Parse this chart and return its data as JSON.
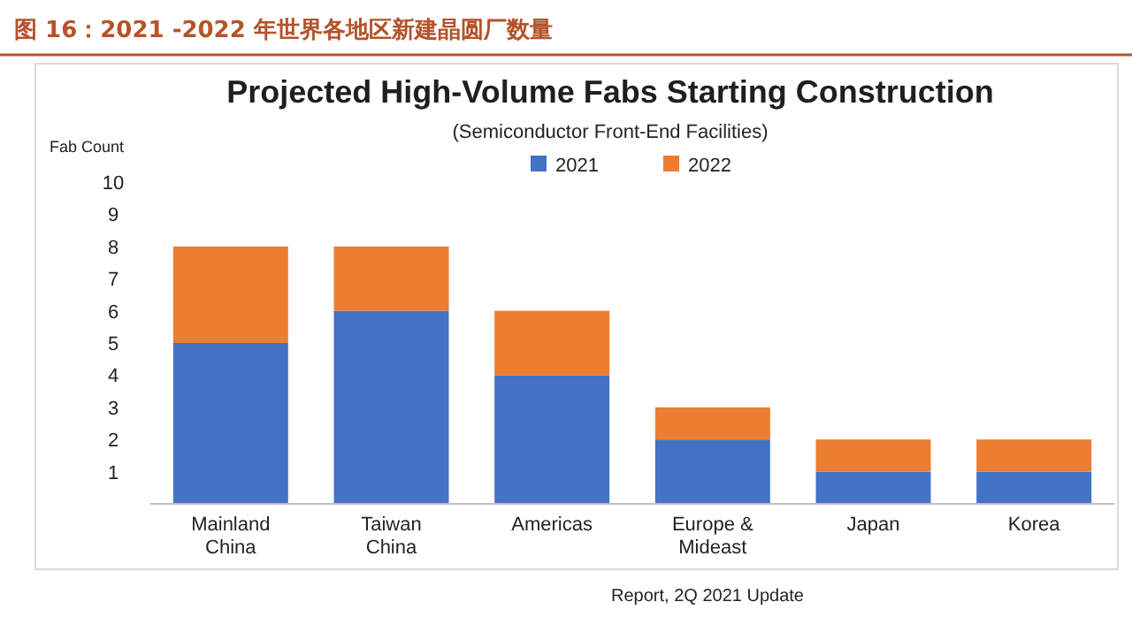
{
  "chart_data": {
    "type": "bar",
    "title": "图 16：2021 -2022 年世界各地区新建晶圆厂数量",
    "subtitle": "Projected High-Volume Fabs Starting Construction",
    "annotations": [
      "(Semiconductor Front-End Facilities)",
      "Report, 2Q 2021 Update"
    ],
    "ylabel": "Fab Count",
    "categories": [
      "Mainland China",
      "Taiwan China",
      "Americas",
      "Europe & Mideast",
      "Japan",
      "Korea"
    ],
    "stacked": true,
    "ylim": [
      0,
      10
    ],
    "yticks": [
      1,
      2,
      3,
      4,
      5,
      6,
      7,
      8,
      9,
      10
    ],
    "legend": "top",
    "series": [
      {
        "name": "2021",
        "color": "#4472c4",
        "values": [
          5,
          6,
          4,
          2,
          1,
          1
        ]
      },
      {
        "name": "2022",
        "color": "#ed7d31",
        "values": [
          3,
          2,
          2,
          1,
          1,
          1
        ]
      }
    ]
  }
}
